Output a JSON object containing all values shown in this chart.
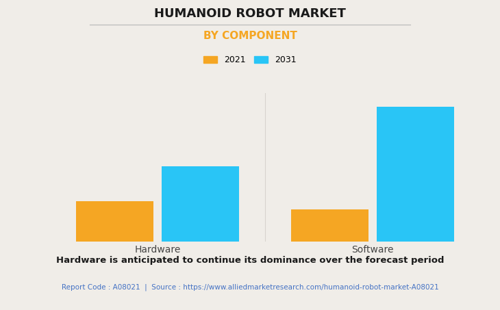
{
  "title": "HUMANOID ROBOT MARKET",
  "subtitle": "BY COMPONENT",
  "categories": [
    "Hardware",
    "Software"
  ],
  "years": [
    "2021",
    "2031"
  ],
  "values": {
    "2021": [
      0.3,
      0.24
    ],
    "2031": [
      0.56,
      1.0
    ]
  },
  "bar_colors": {
    "2021": "#F5A623",
    "2031": "#29C5F6"
  },
  "background_color": "#F0EDE8",
  "title_fontsize": 13,
  "subtitle_fontsize": 11,
  "subtitle_color": "#F5A623",
  "ylim": [
    0,
    1.1
  ],
  "grid_color": "#D8D4CE",
  "bar_width": 0.18,
  "footer_text": "Hardware is anticipated to continue its dominance over the forecast period",
  "source_text": "Report Code : A08021  |  Source : https://www.alliedmarketresearch.com/humanoid-robot-market-A08021",
  "source_color": "#4472C4",
  "legend_fontsize": 9,
  "tick_label_fontsize": 10,
  "title_line_color": "#BBBBBB"
}
